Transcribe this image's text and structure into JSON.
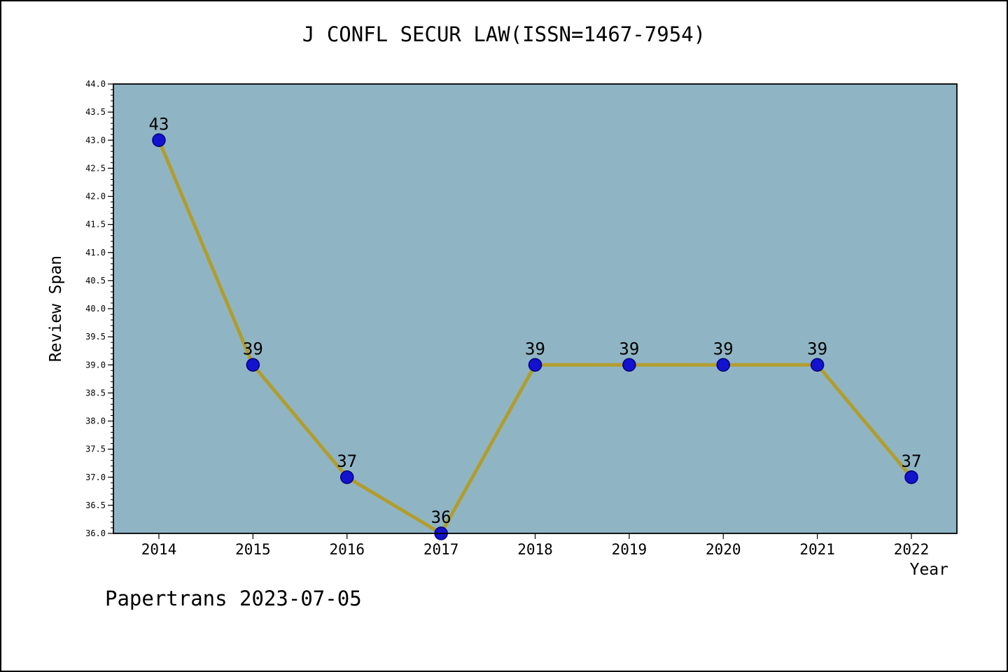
{
  "footer": "Papertrans 2023-07-05",
  "chart_data": {
    "type": "line",
    "title": "J CONFL SECUR LAW(ISSN=1467-7954)",
    "xlabel": "Year",
    "ylabel": "Review Span",
    "x": [
      2014,
      2015,
      2016,
      2017,
      2018,
      2019,
      2020,
      2021,
      2022
    ],
    "series": [
      {
        "name": "Review Span",
        "values": [
          43,
          39,
          37,
          36,
          39,
          39,
          39,
          39,
          37
        ]
      }
    ],
    "ylim": [
      36.0,
      44.0
    ],
    "ytick_step": 0.5,
    "y_minor_step": 0.1,
    "grid": false,
    "legend_position": "none",
    "colors": {
      "line": "#b19d2e",
      "marker_fill": "#1212cf",
      "marker_edge": "#00007a",
      "plot_background": "#8fb5c4",
      "axis": "#000000",
      "text": "#000000"
    }
  }
}
